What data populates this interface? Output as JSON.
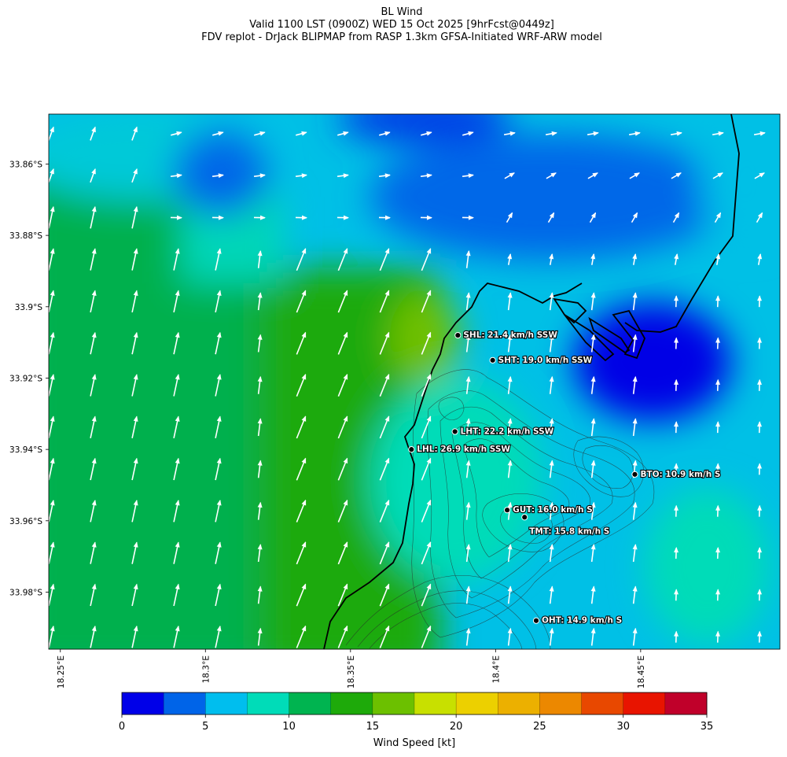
{
  "title": {
    "line1": "BL Wind",
    "line2": "Valid 1100 LST (0900Z) WED 15 Oct 2025 [9hrFcst@0449z]",
    "line3": "FDV replot - DrJack BLIPMAP from RASP 1.3km GFSA-Initiated WRF-ARW model"
  },
  "map": {
    "lon_range": [
      18.246,
      18.498
    ],
    "lat_range": [
      -33.996,
      -33.846
    ],
    "lat_ticks": [
      {
        "value": -33.86,
        "label": "33.86°S"
      },
      {
        "value": -33.88,
        "label": "33.88°S"
      },
      {
        "value": -33.9,
        "label": "33.9°S"
      },
      {
        "value": -33.92,
        "label": "33.92°S"
      },
      {
        "value": -33.94,
        "label": "33.94°S"
      },
      {
        "value": -33.96,
        "label": "33.96°S"
      },
      {
        "value": -33.98,
        "label": "33.98°S"
      }
    ],
    "lon_ticks": [
      {
        "value": 18.25,
        "label": "18.25°E"
      },
      {
        "value": 18.3,
        "label": "18.3°E"
      },
      {
        "value": 18.35,
        "label": "18.35°E"
      },
      {
        "value": 18.4,
        "label": "18.4°E"
      },
      {
        "value": 18.45,
        "label": "18.45°E"
      }
    ],
    "stations": [
      {
        "id": "SHL",
        "lon": 18.387,
        "lat": -33.908,
        "label": "SHL: 21.4 km/h SSW",
        "label_side": "right"
      },
      {
        "id": "SHT",
        "lon": 18.399,
        "lat": -33.915,
        "label": "SHT: 19.0 km/h SSW",
        "label_side": "right"
      },
      {
        "id": "LHT",
        "lon": 18.386,
        "lat": -33.935,
        "label": "LHT: 22.2 km/h SSW",
        "label_side": "right"
      },
      {
        "id": "LHL",
        "lon": 18.371,
        "lat": -33.94,
        "label": "LHL: 26.9 km/h SSW",
        "label_side": "right"
      },
      {
        "id": "BTO",
        "lon": 18.448,
        "lat": -33.947,
        "label": "BTO: 10.9 km/h S",
        "label_side": "right"
      },
      {
        "id": "GUT",
        "lon": 18.404,
        "lat": -33.957,
        "label": "GUT: 16.0 km/h S",
        "label_side": "right"
      },
      {
        "id": "TMT",
        "lon": 18.41,
        "lat": -33.959,
        "label": "TMT: 15.8 km/h S",
        "label_side": "below"
      },
      {
        "id": "OHT",
        "lon": 18.414,
        "lat": -33.988,
        "label": "OHT: 14.9 km/h S",
        "label_side": "right"
      }
    ]
  },
  "colorbar": {
    "label": "Wind Speed [kt]",
    "min": 0,
    "max": 35,
    "step": 2.5,
    "tick_labels": [
      "0",
      "5",
      "10",
      "15",
      "20",
      "25",
      "30",
      "35"
    ],
    "colors": [
      "#0000e8",
      "#0064e8",
      "#00beee",
      "#00dcb8",
      "#00b450",
      "#1eaa0a",
      "#6cc000",
      "#c8e000",
      "#ecd000",
      "#ecb000",
      "#ec8800",
      "#e84800",
      "#e81400",
      "#c0002a"
    ]
  }
}
